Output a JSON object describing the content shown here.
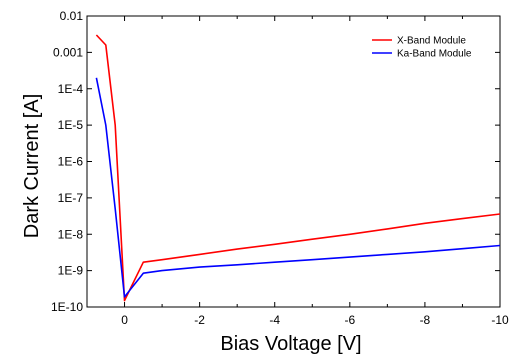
{
  "chart_data": {
    "type": "line",
    "xlabel": "Bias Voltage  [V]",
    "ylabel": "Dark Current  [A]",
    "xlim": [
      1,
      -10
    ],
    "ylim": [
      1e-10,
      0.01
    ],
    "yscale": "log",
    "x_ticks": [
      0,
      -2,
      -4,
      -6,
      -8,
      -10
    ],
    "x_tick_labels": [
      "0",
      "-2",
      "-4",
      "-6",
      "-8",
      "-10"
    ],
    "y_ticks": [
      1e-10,
      1e-09,
      1e-08,
      1e-07,
      1e-06,
      1e-05,
      0.0001,
      0.001,
      0.01
    ],
    "y_tick_labels": [
      "1E-10",
      "1E-9",
      "1E-8",
      "1E-7",
      "1E-6",
      "1E-5",
      "1E-4",
      "0.001",
      "0.01"
    ],
    "grid": false,
    "legend_position": "top-right",
    "series": [
      {
        "name": "X-Band Module",
        "color": "#ff0000",
        "x": [
          0.75,
          0.5,
          0.25,
          0,
          -0.5,
          -1,
          -2,
          -3,
          -4,
          -5,
          -6,
          -7,
          -8,
          -9,
          -10
        ],
        "y": [
          0.003,
          0.0016,
          1e-05,
          1.5e-10,
          1.7e-09,
          2e-09,
          2.8e-09,
          3.9e-09,
          5.3e-09,
          7.3e-09,
          1e-08,
          1.4e-08,
          2e-08,
          2.7e-08,
          3.6e-08
        ]
      },
      {
        "name": "Ka-Band Module",
        "color": "#0000ff",
        "x": [
          0.75,
          0.5,
          0.25,
          0,
          -0.5,
          -1,
          -2,
          -3,
          -4,
          -5,
          -6,
          -7,
          -8,
          -9,
          -10
        ],
        "y": [
          0.0002,
          1e-05,
          5e-08,
          1.9e-10,
          8.5e-10,
          1e-09,
          1.25e-09,
          1.45e-09,
          1.7e-09,
          2e-09,
          2.35e-09,
          2.8e-09,
          3.3e-09,
          4e-09,
          4.9e-09
        ]
      }
    ]
  }
}
